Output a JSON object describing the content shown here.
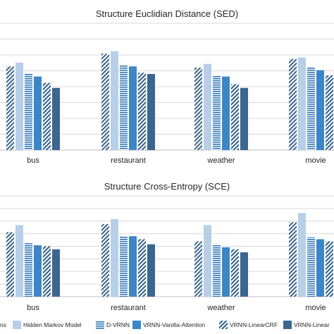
{
  "legend_partial_label": "ns",
  "chart_data": [
    {
      "type": "bar",
      "title": "Structure Euclidian Distance (SED)",
      "categories": [
        "bus",
        "restaurant",
        "weather",
        "movie"
      ],
      "ylim": [
        0,
        1
      ],
      "grid": true,
      "legend": "bottom",
      "series": [
        {
          "name": "",
          "values": [
            0.66,
            0.76,
            0.65,
            0.72
          ]
        },
        {
          "name": "Hidden Markov Model",
          "values": [
            0.69,
            0.78,
            0.68,
            0.73
          ]
        },
        {
          "name": "D-VRNN",
          "values": [
            0.6,
            0.67,
            0.59,
            0.65
          ]
        },
        {
          "name": "VRNN-Vanilla-Attention",
          "values": [
            0.58,
            0.66,
            0.58,
            0.63
          ]
        },
        {
          "name": "VRNN-LinearCRF",
          "values": [
            0.53,
            0.61,
            0.52,
            0.59
          ]
        },
        {
          "name": "VRNN-Linear",
          "values": [
            0.49,
            0.6,
            0.49,
            0.56
          ]
        }
      ]
    },
    {
      "type": "bar",
      "title": "Structure Cross-Entropy (SCE)",
      "categories": [
        "bus",
        "restaurant",
        "weather",
        "movie"
      ],
      "ylim": [
        0,
        1
      ],
      "grid": true,
      "legend": "bottom",
      "series": [
        {
          "name": "",
          "values": [
            0.64,
            0.72,
            0.55,
            0.74
          ]
        },
        {
          "name": "Hidden Markov Model",
          "values": [
            0.71,
            0.77,
            0.71,
            0.83
          ]
        },
        {
          "name": "D-VRNN",
          "values": [
            0.53,
            0.6,
            0.51,
            0.59
          ]
        },
        {
          "name": "VRNN-Vanilla-Attention",
          "values": [
            0.51,
            0.6,
            0.49,
            0.57
          ]
        },
        {
          "name": "VRNN-LinearCRF",
          "values": [
            0.5,
            0.57,
            0.47,
            0.55
          ]
        },
        {
          "name": "VRNN-Linear",
          "values": [
            0.47,
            0.52,
            0.44,
            0.52
          ]
        }
      ]
    }
  ],
  "colors": {
    "series": [
      "#3d6489",
      "#b8cfe8",
      "#2e75b6",
      "#3d86c6",
      "#2e5f8a",
      "#3b6690"
    ],
    "patterns": [
      "diag",
      "solid",
      "hlines",
      "solid",
      "diag",
      "solid"
    ],
    "grid": "#d9d9d9",
    "axis": "#bfbfbf",
    "text": "#262626"
  }
}
